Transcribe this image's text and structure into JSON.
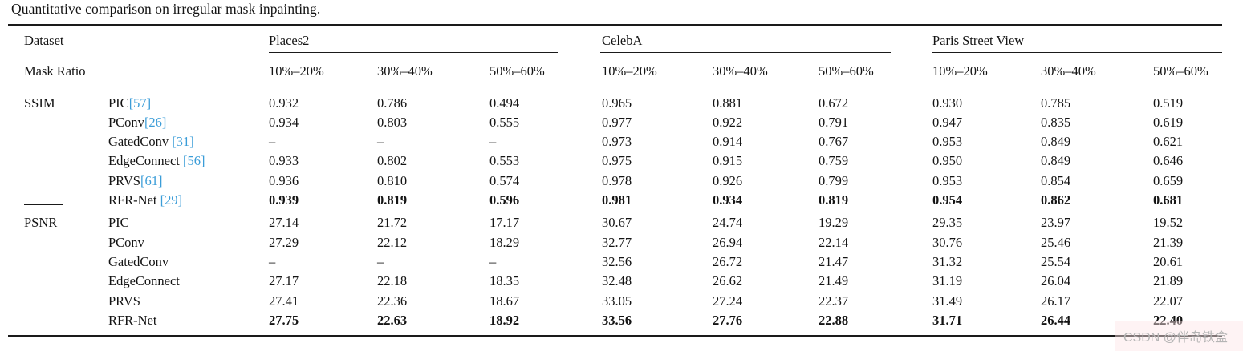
{
  "title": "Quantitative comparison on irregular mask inpainting.",
  "colors": {
    "citation_link": "#3b9dd8",
    "rule": "#1a1a1a",
    "watermark_text": "#b5b5b5"
  },
  "table": {
    "dataset_label": "Dataset",
    "mask_ratio_label": "Mask Ratio",
    "groups": [
      {
        "name": "Places2",
        "ratios": [
          "10%–20%",
          "30%–40%",
          "50%–60%"
        ]
      },
      {
        "name": "CelebA",
        "ratios": [
          "10%–20%",
          "30%–40%",
          "50%–60%"
        ]
      },
      {
        "name": "Paris Street View",
        "ratios": [
          "10%–20%",
          "30%–40%",
          "50%–60%"
        ]
      }
    ],
    "sections": [
      {
        "metric": "SSIM",
        "rows": [
          {
            "method": "PIC",
            "cite": "[57]",
            "bold": false,
            "values": [
              "0.932",
              "0.786",
              "0.494",
              "0.965",
              "0.881",
              "0.672",
              "0.930",
              "0.785",
              "0.519"
            ]
          },
          {
            "method": "PConv",
            "cite": "[26]",
            "bold": false,
            "values": [
              "0.934",
              "0.803",
              "0.555",
              "0.977",
              "0.922",
              "0.791",
              "0.947",
              "0.835",
              "0.619"
            ]
          },
          {
            "method": "GatedConv ",
            "cite": "[31]",
            "bold": false,
            "values": [
              "–",
              "–",
              "–",
              "0.973",
              "0.914",
              "0.767",
              "0.953",
              "0.849",
              "0.621"
            ]
          },
          {
            "method": "EdgeConnect ",
            "cite": "[56]",
            "bold": false,
            "values": [
              "0.933",
              "0.802",
              "0.553",
              "0.975",
              "0.915",
              "0.759",
              "0.950",
              "0.849",
              "0.646"
            ]
          },
          {
            "method": "PRVS",
            "cite": "[61]",
            "bold": false,
            "values": [
              "0.936",
              "0.810",
              "0.574",
              "0.978",
              "0.926",
              "0.799",
              "0.953",
              "0.854",
              "0.659"
            ]
          },
          {
            "method": "RFR-Net ",
            "cite": "[29]",
            "bold": true,
            "values": [
              "0.939",
              "0.819",
              "0.596",
              "0.981",
              "0.934",
              "0.819",
              "0.954",
              "0.862",
              "0.681"
            ]
          }
        ]
      },
      {
        "metric": "PSNR",
        "rows": [
          {
            "method": "PIC",
            "cite": "",
            "bold": false,
            "values": [
              "27.14",
              "21.72",
              "17.17",
              "30.67",
              "24.74",
              "19.29",
              "29.35",
              "23.97",
              "19.52"
            ]
          },
          {
            "method": "PConv",
            "cite": "",
            "bold": false,
            "values": [
              "27.29",
              "22.12",
              "18.29",
              "32.77",
              "26.94",
              "22.14",
              "30.76",
              "25.46",
              "21.39"
            ]
          },
          {
            "method": "GatedConv",
            "cite": "",
            "bold": false,
            "values": [
              "–",
              "–",
              "–",
              "32.56",
              "26.72",
              "21.47",
              "31.32",
              "25.54",
              "20.61"
            ]
          },
          {
            "method": "EdgeConnect",
            "cite": "",
            "bold": false,
            "values": [
              "27.17",
              "22.18",
              "18.35",
              "32.48",
              "26.62",
              "21.49",
              "31.19",
              "26.04",
              "21.89"
            ]
          },
          {
            "method": "PRVS",
            "cite": "",
            "bold": false,
            "values": [
              "27.41",
              "22.36",
              "18.67",
              "33.05",
              "27.24",
              "22.37",
              "31.49",
              "26.17",
              "22.07"
            ]
          },
          {
            "method": "RFR-Net",
            "cite": "",
            "bold": true,
            "values": [
              "27.75",
              "22.63",
              "18.92",
              "33.56",
              "27.76",
              "22.88",
              "31.71",
              "26.44",
              "22.40"
            ]
          }
        ]
      }
    ]
  },
  "watermark": "CSDN @伴岛铁盒"
}
